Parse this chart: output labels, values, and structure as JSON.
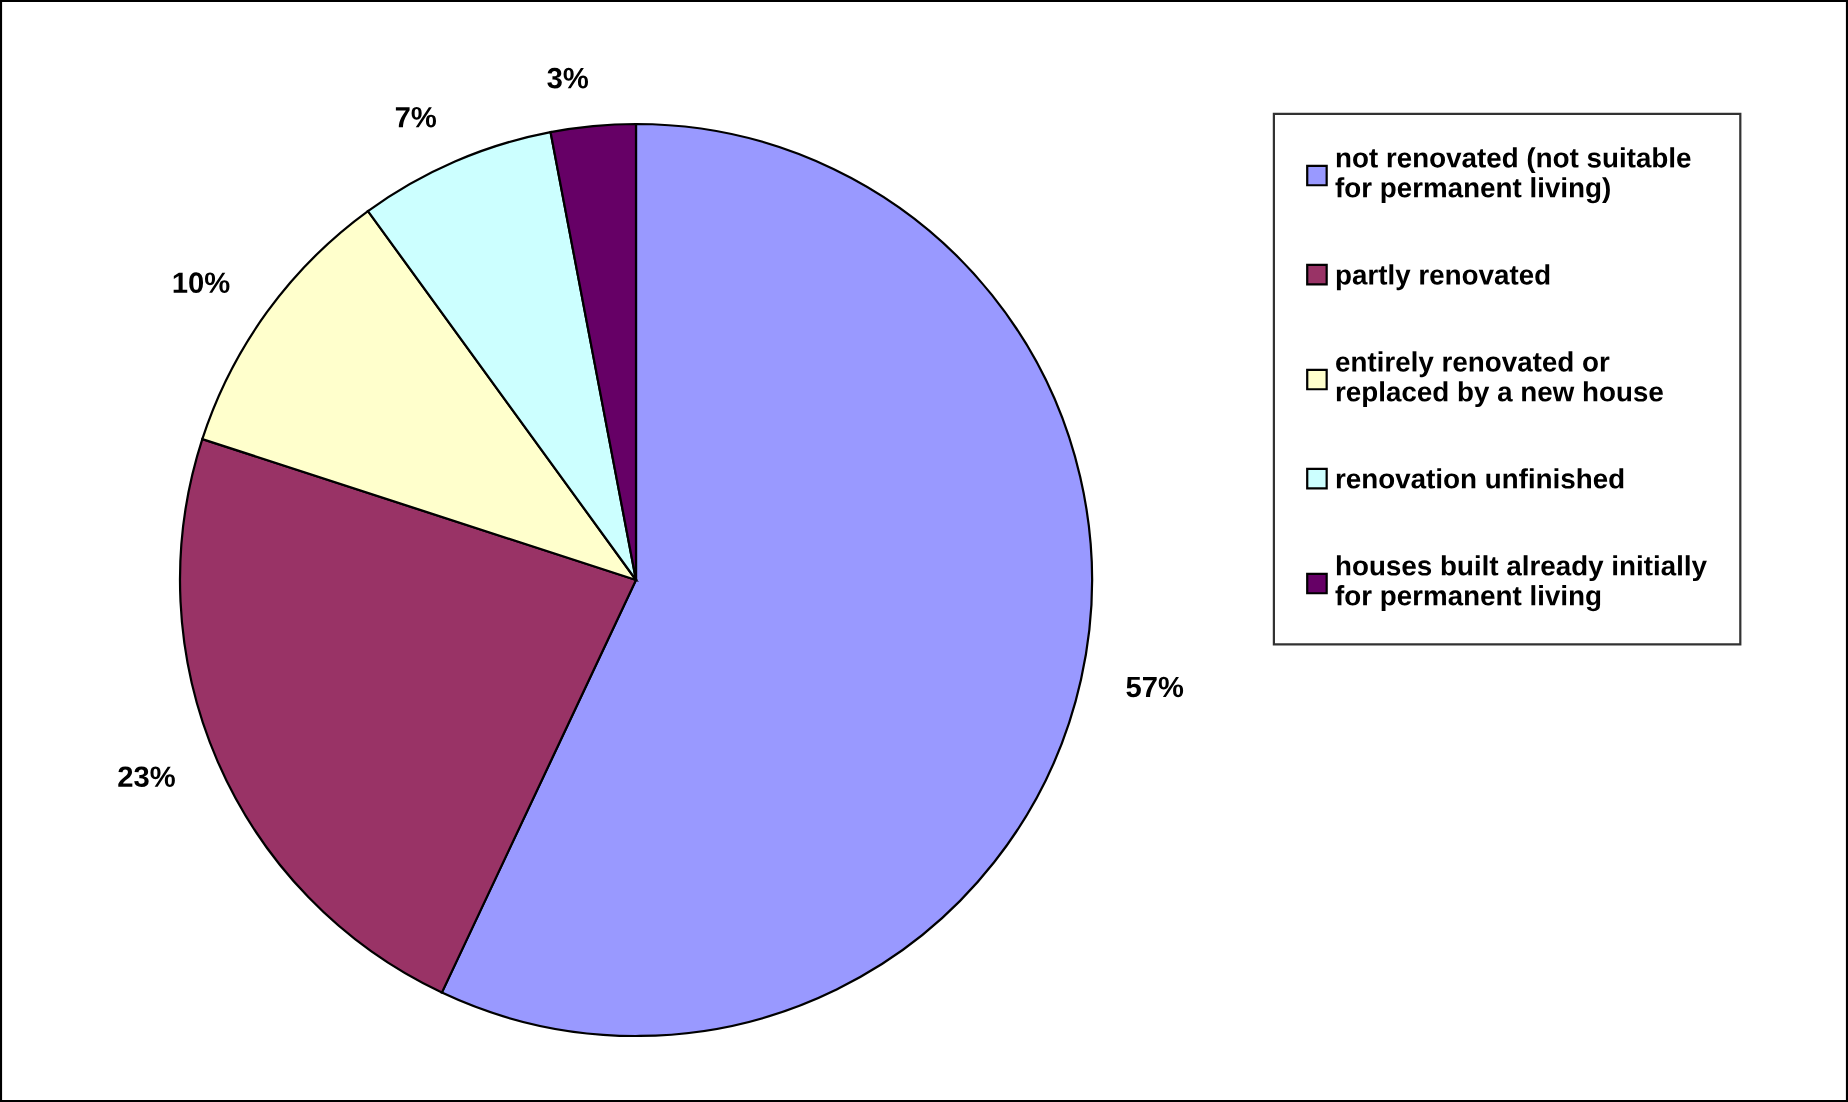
{
  "chart_data": {
    "type": "pie",
    "categories": [
      "not renovated (not suitable\nfor permanent living)",
      "partly renovated",
      "entirely renovated or\nreplaced by a new house",
      "renovation unfinished",
      "houses built already initially\nfor permanent living"
    ],
    "values": [
      57,
      23,
      10,
      7,
      3
    ],
    "value_labels": [
      "57%",
      "23%",
      "10%",
      "7%",
      "3%"
    ],
    "colors": [
      "#9999ff",
      "#993366",
      "#ffffcc",
      "#ccffff",
      "#660066"
    ],
    "legend": "right"
  }
}
